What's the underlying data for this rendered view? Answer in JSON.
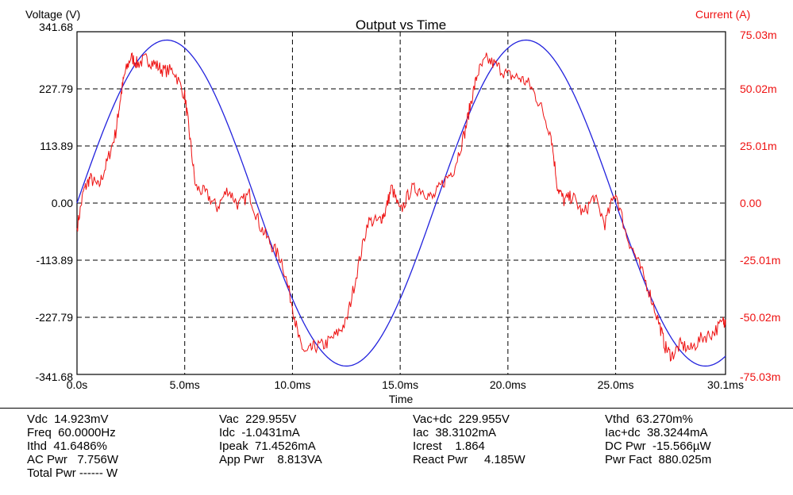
{
  "chart_data": {
    "type": "line",
    "title": "Output vs Time",
    "xlabel": "Time",
    "ylabel_left": "Voltage (V)",
    "ylabel_right": "Current (A)",
    "xlim": [
      0,
      30.1
    ],
    "x_unit": "ms",
    "xticks": [
      0,
      5,
      10,
      15,
      20,
      25,
      30.1
    ],
    "xtick_labels": [
      "0.0s",
      "5.0ms",
      "10.0ms",
      "15.0ms",
      "20.0ms",
      "25.0ms",
      "30.1ms"
    ],
    "ylim_left": [
      -341.68,
      341.68
    ],
    "yticks_left": [
      341.68,
      227.79,
      113.89,
      0,
      -113.89,
      -227.79,
      -341.68
    ],
    "ytick_labels_left": [
      "341.68",
      "227.79",
      "113.89",
      "0.00",
      "-113.89",
      "-227.79",
      "-341.68"
    ],
    "ylim_right": [
      -0.07503,
      0.07503
    ],
    "ytick_labels_right": [
      "75.03m",
      "50.02m",
      "25.01m",
      "0.00",
      "-25.01m",
      "-50.02m",
      "-75.03m"
    ],
    "grid": true,
    "colors": {
      "voltage": "#2222dd",
      "current": "#ee1111",
      "left_axis_text": "#000000",
      "right_axis_text": "#ee1111"
    },
    "series": [
      {
        "axis": "left",
        "model": "sine",
        "amplitude": 325,
        "frequency_hz": 60,
        "x": [
          0,
          1,
          2,
          3,
          4,
          5,
          6,
          7,
          8,
          9,
          10,
          11,
          12,
          13,
          14,
          15,
          16,
          17,
          18,
          19,
          20,
          21,
          22,
          23,
          24,
          25,
          26,
          27,
          28,
          29,
          30.1
        ],
        "values": [
          0,
          117,
          218,
          290,
          325,
          316,
          264,
          178,
          68,
          -50,
          -163,
          -254,
          -311,
          -324,
          -297,
          -230,
          -133,
          -20,
          98,
          204,
          282,
          323,
          319,
          272,
          191,
          84,
          -33,
          -149,
          -244,
          -307,
          -325
        ]
      },
      {
        "axis": "right",
        "x": [
          0,
          0.3,
          0.6,
          1.0,
          1.4,
          1.8,
          2.0,
          2.2,
          2.5,
          2.8,
          3.2,
          3.6,
          4.0,
          4.5,
          5.0,
          5.2,
          5.5,
          6.0,
          6.5,
          7.0,
          7.5,
          8.0,
          8.5,
          9.0,
          9.5,
          10.0,
          10.3,
          10.6,
          11.0,
          11.5,
          12.0,
          12.5,
          13.0,
          13.5,
          14.0,
          14.3,
          14.6,
          15.0,
          15.5,
          16.0,
          16.5,
          17.0,
          17.5,
          18.0,
          18.3,
          18.6,
          19.0,
          19.5,
          20.0,
          20.5,
          21.0,
          21.5,
          22.0,
          22.3,
          22.6,
          23.0,
          23.5,
          24.0,
          24.5,
          25.0,
          25.5,
          26.0,
          26.5,
          27.0,
          27.3,
          27.6,
          28.0,
          28.5,
          29.0,
          29.5,
          30.0,
          30.1
        ],
        "values": [
          -0.011,
          0.005,
          0.011,
          0.007,
          0.018,
          0.031,
          0.045,
          0.056,
          0.064,
          0.061,
          0.063,
          0.061,
          0.058,
          0.058,
          0.047,
          0.032,
          0.007,
          0.004,
          -0.002,
          0.006,
          -0.001,
          0.004,
          -0.01,
          -0.018,
          -0.025,
          -0.045,
          -0.06,
          -0.066,
          -0.063,
          -0.062,
          -0.058,
          -0.052,
          -0.03,
          -0.008,
          -0.008,
          -0.004,
          0.007,
          -0.004,
          0.006,
          0.006,
          0.002,
          0.009,
          0.015,
          0.031,
          0.045,
          0.057,
          0.063,
          0.06,
          0.056,
          0.055,
          0.052,
          0.043,
          0.03,
          0.007,
          0.001,
          0.003,
          -0.005,
          0.003,
          -0.009,
          0.005,
          -0.014,
          -0.025,
          -0.037,
          -0.052,
          -0.063,
          -0.067,
          -0.062,
          -0.064,
          -0.059,
          -0.057,
          -0.052,
          -0.051
        ]
      }
    ]
  },
  "stats": {
    "col1": [
      "Vdc  14.923mV",
      "Freq  60.0000Hz",
      "Ithd  41.6486%",
      "AC Pwr   7.756W",
      "Total Pwr ------ W"
    ],
    "col2": [
      "Vac  229.955V",
      "Idc  -1.0431mA",
      "Ipeak  71.4526mA",
      "App Pwr    8.813VA"
    ],
    "col3": [
      "Vac+dc  229.955V",
      "Iac  38.3102mA",
      "Icrest    1.864",
      "React Pwr     4.185W"
    ],
    "col4": [
      "Vthd  63.270m%",
      "Iac+dc  38.3244mA",
      "DC Pwr  -15.566µW",
      "Pwr Fact  880.025m"
    ]
  }
}
